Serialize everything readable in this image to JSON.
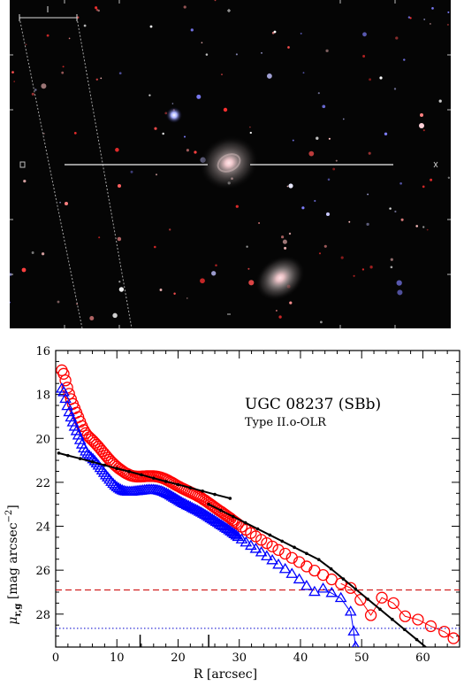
{
  "image": {
    "type": "sdss-color-image",
    "colors": {
      "background": "#050505",
      "galaxy_core": "#ffd9dc",
      "galaxy_halo": "#a89a9a",
      "overlay_lines": "#e6e6e6"
    },
    "stars": [
      {
        "c": "#9fa8ff",
        "r": 5,
        "b": 1.0
      },
      {
        "c": "#ffb0c0",
        "r": 3,
        "b": 0.9
      },
      {
        "c": "#ff4040",
        "r": 2,
        "b": 0.9
      },
      {
        "c": "#ffffff",
        "r": 3,
        "b": 0.8
      },
      {
        "c": "#c0c8ff",
        "r": 2.5,
        "b": 0.8
      },
      {
        "c": "#ff5a5a",
        "r": 2,
        "b": 0.7
      }
    ]
  },
  "chart_data": {
    "type": "scatter",
    "title": "UGC 08237 (SBb)",
    "subtitle": "Type II.o-OLR",
    "xlabel": "R [arcsec]",
    "ylabel_main": "μ",
    "ylabel_sub": "r,g",
    "ylabel_unit": "[mag arcsec",
    "ylabel_exp": "−2",
    "ylabel_close": "]",
    "xlim": [
      0,
      66
    ],
    "ylim": [
      29.5,
      16
    ],
    "xticks": [
      0,
      10,
      20,
      30,
      40,
      50,
      60
    ],
    "yticks": [
      16,
      18,
      20,
      22,
      24,
      26,
      28
    ],
    "break_markers": [
      13.8,
      25.0
    ],
    "colors": {
      "r": "#ff0000",
      "g": "#0000ff",
      "fit": "#000000",
      "r_limit": "#cc0000",
      "g_limit": "#0000cc"
    },
    "limits": {
      "r": 26.9,
      "g": 28.65
    },
    "series": [
      {
        "band": "r",
        "marker": "circle",
        "x": [
          1.0,
          1.3,
          1.6,
          1.9,
          2.2,
          2.5,
          2.8,
          3.1,
          3.4,
          3.7,
          4.0,
          4.3,
          4.6,
          4.9,
          5.2,
          5.5,
          5.8,
          6.1,
          6.4,
          6.7,
          7.0,
          7.3,
          7.6,
          7.9,
          8.2,
          8.5,
          8.8,
          9.1,
          9.4,
          9.7,
          10.0,
          10.3,
          10.6,
          10.9,
          11.2,
          11.5,
          11.8,
          12.1,
          12.4,
          12.7,
          13.0,
          13.3,
          13.6,
          13.9,
          14.2,
          14.5,
          14.8,
          15.1,
          15.4,
          15.7,
          16.0,
          16.3,
          16.6,
          16.9,
          17.2,
          17.5,
          17.8,
          18.1,
          18.4,
          18.7,
          19.0,
          19.3,
          19.6,
          19.9,
          20.2,
          20.5,
          20.8,
          21.1,
          21.4,
          21.7,
          22.0,
          22.3,
          22.6,
          22.9,
          23.2,
          23.5,
          23.8,
          24.1,
          24.4,
          24.7,
          25.0,
          25.3,
          25.6,
          25.9,
          26.2,
          26.5,
          26.8,
          27.1,
          27.4,
          27.7,
          28.0,
          28.3,
          28.6,
          28.9,
          29.2,
          29.5,
          29.8,
          30.4,
          31.1,
          31.9,
          32.7,
          33.6,
          34.5,
          35.4,
          36.4,
          37.5,
          38.6,
          39.8,
          41.0,
          42.3,
          43.7,
          45.1,
          46.6,
          48.2,
          49.8,
          51.5,
          53.3,
          55.2,
          57.1,
          59.2,
          61.3,
          63.5,
          65.0
        ],
        "y": [
          16.9,
          17.06,
          17.36,
          17.69,
          17.97,
          18.21,
          18.43,
          18.63,
          18.83,
          19.03,
          19.24,
          19.44,
          19.62,
          19.76,
          19.87,
          19.95,
          20.03,
          20.11,
          20.2,
          20.29,
          20.38,
          20.48,
          20.58,
          20.68,
          20.78,
          20.88,
          20.97,
          21.06,
          21.14,
          21.22,
          21.29,
          21.36,
          21.42,
          21.48,
          21.54,
          21.59,
          21.63,
          21.67,
          21.7,
          21.72,
          21.73,
          21.74,
          21.74,
          21.74,
          21.73,
          21.73,
          21.72,
          21.72,
          21.72,
          21.72,
          21.72,
          21.73,
          21.74,
          21.76,
          21.78,
          21.81,
          21.84,
          21.88,
          21.92,
          21.97,
          22.01,
          22.06,
          22.11,
          22.16,
          22.2,
          22.25,
          22.29,
          22.33,
          22.37,
          22.41,
          22.45,
          22.49,
          22.53,
          22.57,
          22.62,
          22.66,
          22.71,
          22.77,
          22.82,
          22.88,
          22.94,
          23.0,
          23.06,
          23.12,
          23.18,
          23.24,
          23.3,
          23.35,
          23.41,
          23.47,
          23.53,
          23.59,
          23.65,
          23.72,
          23.78,
          23.84,
          23.9,
          24.02,
          24.16,
          24.31,
          24.46,
          24.62,
          24.77,
          24.92,
          25.08,
          25.25,
          25.44,
          25.63,
          25.83,
          26.02,
          26.22,
          26.42,
          26.61,
          26.81,
          27.35,
          28.05,
          27.25,
          27.5,
          28.1,
          28.25,
          28.55,
          28.8,
          29.1
        ],
        "connect_from": 112
      },
      {
        "band": "g",
        "marker": "triangle",
        "x": [
          1.0,
          1.3,
          1.6,
          1.9,
          2.2,
          2.5,
          2.8,
          3.1,
          3.4,
          3.7,
          4.0,
          4.3,
          4.6,
          4.9,
          5.2,
          5.5,
          5.8,
          6.1,
          6.4,
          6.7,
          7.0,
          7.3,
          7.6,
          7.9,
          8.2,
          8.5,
          8.8,
          9.1,
          9.4,
          9.7,
          10.0,
          10.3,
          10.6,
          10.9,
          11.2,
          11.5,
          11.8,
          12.1,
          12.4,
          12.7,
          13.0,
          13.3,
          13.6,
          13.9,
          14.2,
          14.5,
          14.8,
          15.1,
          15.4,
          15.7,
          16.0,
          16.3,
          16.6,
          16.9,
          17.2,
          17.5,
          17.8,
          18.1,
          18.4,
          18.7,
          19.0,
          19.3,
          19.6,
          19.9,
          20.2,
          20.5,
          20.8,
          21.1,
          21.4,
          21.7,
          22.0,
          22.3,
          22.6,
          22.9,
          23.2,
          23.5,
          23.8,
          24.1,
          24.4,
          24.7,
          25.0,
          25.3,
          25.6,
          25.9,
          26.2,
          26.5,
          26.8,
          27.1,
          27.4,
          27.7,
          28.0,
          28.3,
          28.6,
          28.9,
          29.2,
          29.5,
          29.8,
          30.4,
          31.1,
          31.9,
          32.7,
          33.6,
          34.5,
          35.4,
          36.4,
          37.5,
          38.6,
          39.8,
          41.0,
          42.3,
          43.7,
          45.1,
          46.6,
          48.2,
          48.7,
          49.0
        ],
        "y": [
          17.75,
          17.91,
          18.21,
          18.54,
          18.82,
          19.06,
          19.28,
          19.48,
          19.68,
          19.88,
          20.09,
          20.29,
          20.47,
          20.61,
          20.72,
          20.8,
          20.88,
          20.96,
          21.05,
          21.15,
          21.25,
          21.36,
          21.47,
          21.58,
          21.69,
          21.79,
          21.89,
          21.99,
          22.08,
          22.16,
          22.23,
          22.29,
          22.34,
          22.38,
          22.41,
          22.43,
          22.44,
          22.44,
          22.44,
          22.43,
          22.42,
          22.41,
          22.4,
          22.39,
          22.38,
          22.37,
          22.36,
          22.35,
          22.35,
          22.35,
          22.35,
          22.36,
          22.37,
          22.39,
          22.41,
          22.44,
          22.48,
          22.52,
          22.56,
          22.61,
          22.66,
          22.71,
          22.76,
          22.81,
          22.86,
          22.91,
          22.96,
          23.0,
          23.05,
          23.09,
          23.13,
          23.18,
          23.22,
          23.26,
          23.3,
          23.35,
          23.39,
          23.44,
          23.49,
          23.54,
          23.59,
          23.65,
          23.7,
          23.75,
          23.81,
          23.86,
          23.92,
          23.97,
          24.02,
          24.08,
          24.13,
          24.19,
          24.25,
          24.31,
          24.37,
          24.43,
          24.5,
          24.61,
          24.75,
          24.9,
          25.04,
          25.2,
          25.38,
          25.56,
          25.76,
          25.96,
          26.18,
          26.43,
          26.73,
          27.0,
          26.85,
          27.05,
          27.28,
          27.9,
          28.8,
          29.5
        ],
        "connect_from": 110
      },
      {
        "band": "fit_inner",
        "marker": "dot",
        "x": [
          0.5,
          2,
          4,
          6,
          8,
          10,
          12,
          14,
          16,
          18,
          20,
          22,
          24,
          26,
          28.5
        ],
        "y": [
          20.67,
          20.78,
          20.92,
          21.07,
          21.22,
          21.37,
          21.51,
          21.66,
          21.81,
          21.96,
          22.1,
          22.25,
          22.4,
          22.55,
          22.73
        ]
      },
      {
        "band": "fit_outer",
        "marker": "dot",
        "x": [
          25,
          27,
          29,
          31,
          33,
          35,
          37,
          39,
          41,
          43,
          45,
          47,
          49,
          51,
          53,
          55,
          57,
          59,
          61,
          62
        ],
        "y": [
          23.0,
          23.28,
          23.56,
          23.84,
          24.12,
          24.4,
          24.68,
          24.96,
          25.24,
          25.52,
          25.94,
          26.4,
          26.86,
          27.32,
          27.78,
          28.24,
          28.7,
          29.16,
          29.62,
          29.85
        ]
      }
    ]
  }
}
